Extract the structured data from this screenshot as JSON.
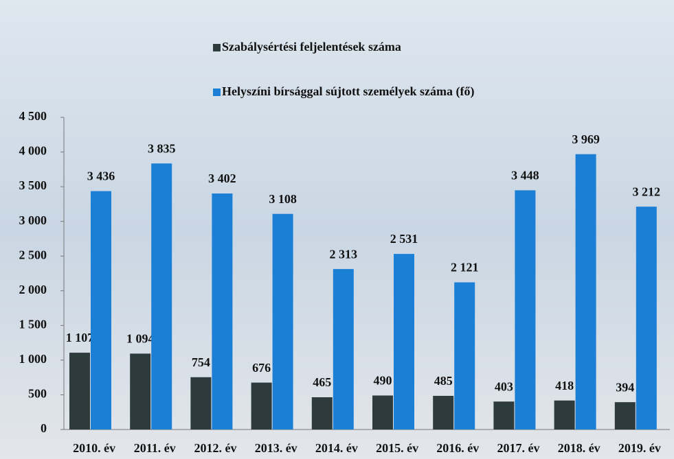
{
  "chart_data": {
    "type": "bar",
    "categories": [
      "2010. év",
      "2011. év",
      "2012. év",
      "2013. év",
      "2014. év",
      "2015. év",
      "2016. év",
      "2017. év",
      "2018. év",
      "2019. év"
    ],
    "series": [
      {
        "name": "Szabálysértési feljelentések száma",
        "color": "#2e3b3c",
        "values": [
          1107,
          1094,
          754,
          676,
          465,
          490,
          485,
          403,
          418,
          394
        ],
        "value_labels": [
          "1 107",
          "1 094",
          "754",
          "676",
          "465",
          "490",
          "485",
          "403",
          "418",
          "394"
        ]
      },
      {
        "name": "Helyszíni bírsággal sújtott személyek száma (fő)",
        "color": "#1b7fd6",
        "values": [
          3436,
          3835,
          3402,
          3108,
          2313,
          2531,
          2121,
          3448,
          3969,
          3212
        ],
        "value_labels": [
          "3 436",
          "3 835",
          "3 402",
          "3 108",
          "2 313",
          "2 531",
          "2 121",
          "3 448",
          "3 969",
          "3 212"
        ]
      }
    ],
    "ylim": [
      0,
      4500
    ],
    "yticks": [
      0,
      500,
      {
        "value": 1000,
        "label": "1 000"
      },
      {
        "value": 1500,
        "label": "1 500"
      },
      {
        "value": 2000,
        "label": "2 000"
      },
      {
        "value": 2500,
        "label": "2 500"
      },
      {
        "value": 3000,
        "label": "3 000"
      },
      {
        "value": 3500,
        "label": "3 500"
      },
      {
        "value": 4000,
        "label": "4 000"
      },
      {
        "value": 4500,
        "label": "4 500"
      }
    ]
  }
}
